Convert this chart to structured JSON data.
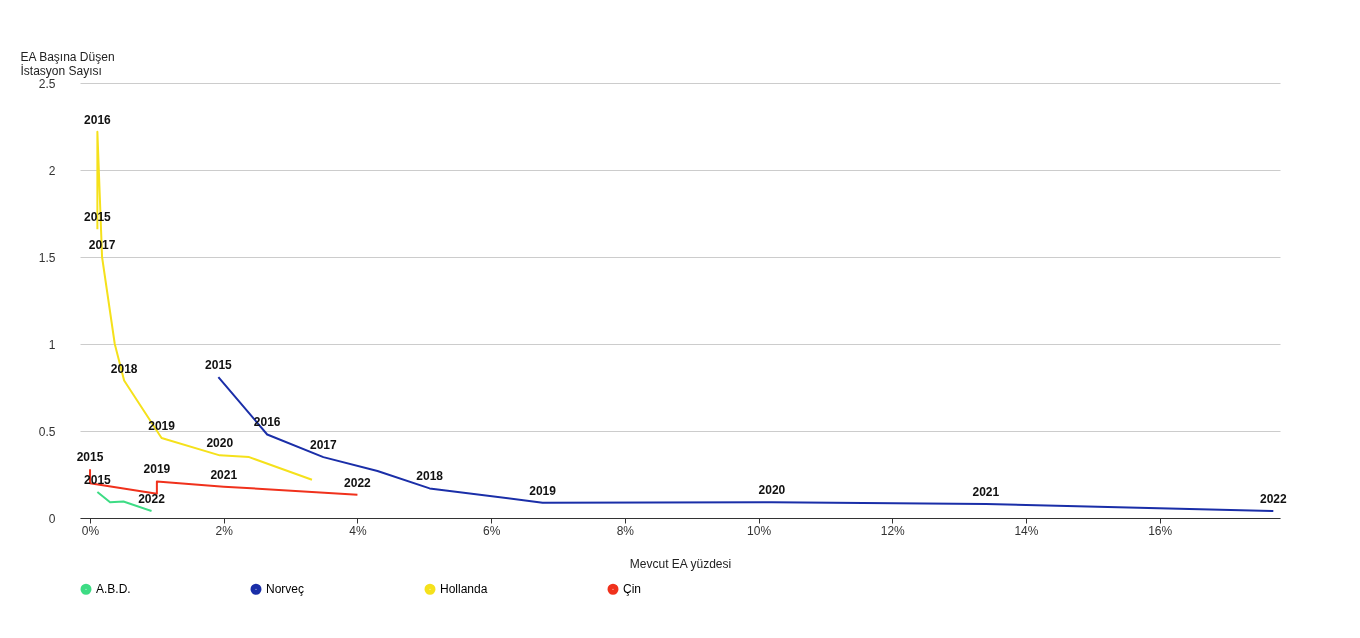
{
  "chart_data": {
    "type": "line",
    "xlabel": "Mevcut EA yüzdesi",
    "ylabel": "EA Başına Düşen\nİstasyon Sayısı",
    "xlim": [
      -0.15,
      17.8
    ],
    "ylim": [
      0,
      2.5
    ],
    "xticks": [
      {
        "value": 0,
        "label": "0%"
      },
      {
        "value": 2,
        "label": "2%"
      },
      {
        "value": 4,
        "label": "4%"
      },
      {
        "value": 6,
        "label": "6%"
      },
      {
        "value": 8,
        "label": "8%"
      },
      {
        "value": 10,
        "label": "10%"
      },
      {
        "value": 12,
        "label": "12%"
      },
      {
        "value": 14,
        "label": "14%"
      },
      {
        "value": 16,
        "label": "16%"
      }
    ],
    "yticks": [
      0,
      0.5,
      1,
      1.5,
      2,
      2.5
    ],
    "grid": "y",
    "legend": "bottom left",
    "marker": "none",
    "line_style": "solid",
    "series": [
      {
        "name": "A.B.D.",
        "color": "#3ddc84",
        "x": [
          0.11,
          0.3,
          0.5,
          0.92
        ],
        "values": [
          0.15,
          0.09,
          0.095,
          0.04
        ]
      },
      {
        "name": "Norveç",
        "color": "#1a2ea8",
        "x": [
          1.92,
          2.65,
          3.49,
          4.3,
          5.08,
          6.77,
          10.2,
          13.4,
          17.7
        ],
        "values": [
          0.81,
          0.48,
          0.35,
          0.27,
          0.17,
          0.088,
          0.09,
          0.08,
          0.04
        ]
      },
      {
        "name": "Hollanda",
        "color": "#f5e11b",
        "x": [
          0.11,
          0.11,
          0.18,
          0.37,
          0.51,
          1.07,
          1.94,
          2.38,
          3.32
        ],
        "values": [
          1.66,
          2.22,
          1.5,
          1.0,
          0.79,
          0.46,
          0.36,
          0.35,
          0.22
        ]
      },
      {
        "name": "Çin",
        "color": "#f0311c",
        "x": [
          0,
          0,
          1.0,
          1.0,
          2.0,
          4.0
        ],
        "values": [
          0.28,
          0.2,
          0.14,
          0.21,
          0.18,
          0.134
        ]
      }
    ],
    "annotations": [
      {
        "text": "2015",
        "x": 0.11,
        "y": 0.15
      },
      {
        "text": "2022",
        "x": 0.92,
        "y": 0.04
      },
      {
        "text": "2015",
        "x": 1.92,
        "y": 0.81
      },
      {
        "text": "2016",
        "x": 2.65,
        "y": 0.48
      },
      {
        "text": "2017",
        "x": 3.49,
        "y": 0.35
      },
      {
        "text": "2018",
        "x": 5.08,
        "y": 0.17
      },
      {
        "text": "2019",
        "x": 6.77,
        "y": 0.088
      },
      {
        "text": "2020",
        "x": 10.2,
        "y": 0.09
      },
      {
        "text": "2021",
        "x": 13.4,
        "y": 0.08
      },
      {
        "text": "2022",
        "x": 17.7,
        "y": 0.04
      },
      {
        "text": "2015",
        "x": 0.11,
        "y": 1.66
      },
      {
        "text": "2016",
        "x": 0.11,
        "y": 2.22
      },
      {
        "text": "2017",
        "x": 0.18,
        "y": 1.5
      },
      {
        "text": "2018",
        "x": 0.51,
        "y": 0.79
      },
      {
        "text": "2019",
        "x": 1.07,
        "y": 0.46
      },
      {
        "text": "2020",
        "x": 1.94,
        "y": 0.36
      },
      {
        "text": "2015",
        "x": 0,
        "y": 0.28
      },
      {
        "text": "2019",
        "x": 1.0,
        "y": 0.21
      },
      {
        "text": "2021",
        "x": 2.0,
        "y": 0.18
      },
      {
        "text": "2022",
        "x": 4.0,
        "y": 0.134
      }
    ]
  }
}
